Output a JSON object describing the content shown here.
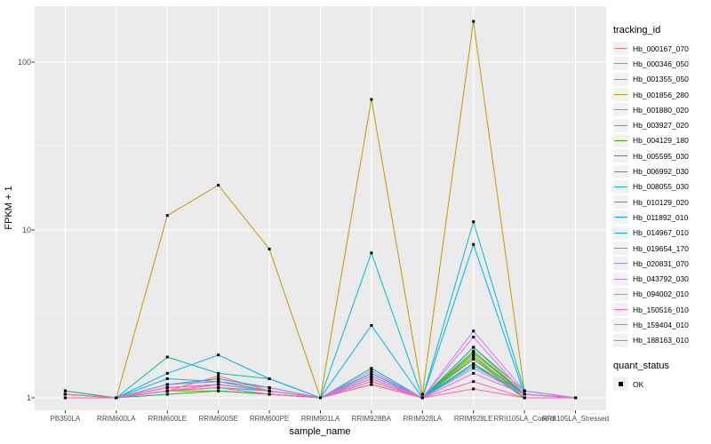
{
  "chart_data": {
    "type": "line",
    "title": "",
    "xlabel": "sample_name",
    "ylabel": "FPKM + 1",
    "y_scale": "log10",
    "y_ticks": [
      1,
      10,
      100
    ],
    "y_tick_labels": [
      "1",
      "10",
      "100"
    ],
    "y_minor_ticks": [
      3.162,
      31.62
    ],
    "ylim": [
      0.84,
      215
    ],
    "grid": true,
    "legend_position": "right",
    "legend_title": "tracking_id",
    "quant_legend": {
      "title": "quant_status",
      "items": [
        "OK"
      ]
    },
    "marker": "black-square",
    "categories": [
      "PB350LA",
      "RRIM600LA",
      "RRIM600LE",
      "RRIM600SE",
      "RRIM600PE",
      "RRIM901LA",
      "RRIM928BA",
      "RRIM928LA",
      "RRIM928LE",
      "RRII105LA_Control",
      "RRII105LA_Stressed"
    ],
    "series": [
      {
        "name": "Hb_000167_070",
        "color": "#F8766D",
        "values": [
          1.05,
          1.0,
          1.1,
          1.35,
          1.1,
          1.0,
          1.2,
          1.0,
          1.6,
          1.05,
          1.0
        ]
      },
      {
        "name": "Hb_000346_050",
        "color": "#EA8331",
        "values": [
          1.1,
          1.0,
          1.15,
          1.2,
          1.1,
          1.0,
          1.3,
          1.0,
          2.0,
          1.05,
          1.0
        ]
      },
      {
        "name": "Hb_001355_050",
        "color": "#D89000",
        "values": [
          1.05,
          1.0,
          1.2,
          1.3,
          1.15,
          1.0,
          1.4,
          1.0,
          1.8,
          1.0,
          1.0
        ]
      },
      {
        "name": "Hb_001856_280",
        "color": "#C09B00",
        "values": [
          1.1,
          1.0,
          12.2,
          18.5,
          7.7,
          1.0,
          60.0,
          1.05,
          175.0,
          1.1,
          1.0
        ]
      },
      {
        "name": "Hb_001880_020",
        "color": "#A3A500",
        "values": [
          1.05,
          1.0,
          1.1,
          1.15,
          1.05,
          1.0,
          1.25,
          1.0,
          1.75,
          1.05,
          1.0
        ]
      },
      {
        "name": "Hb_003927_020",
        "color": "#7CAE00",
        "values": [
          1.0,
          1.0,
          1.1,
          1.1,
          1.05,
          1.0,
          1.3,
          1.0,
          1.7,
          1.0,
          1.0
        ]
      },
      {
        "name": "Hb_004129_180",
        "color": "#39B600",
        "values": [
          1.05,
          1.0,
          1.15,
          1.2,
          1.1,
          1.0,
          1.35,
          1.0,
          1.85,
          1.05,
          1.0
        ]
      },
      {
        "name": "Hb_005595_030",
        "color": "#00BB4E",
        "values": [
          1.0,
          1.0,
          1.05,
          1.1,
          1.05,
          1.0,
          1.2,
          1.0,
          1.6,
          1.0,
          1.0
        ]
      },
      {
        "name": "Hb_006992_030",
        "color": "#00BF7D",
        "values": [
          1.05,
          1.0,
          1.2,
          1.25,
          1.1,
          1.0,
          1.4,
          1.0,
          1.9,
          1.05,
          1.0
        ]
      },
      {
        "name": "Hb_008055_030",
        "color": "#00C1A3",
        "values": [
          1.1,
          1.0,
          1.75,
          1.4,
          1.3,
          1.0,
          1.5,
          1.0,
          2.0,
          1.1,
          1.0
        ]
      },
      {
        "name": "Hb_010129_020",
        "color": "#00BFC4",
        "values": [
          1.05,
          1.0,
          1.3,
          1.25,
          1.15,
          1.0,
          7.3,
          1.0,
          11.2,
          1.1,
          1.0
        ]
      },
      {
        "name": "Hb_011892_010",
        "color": "#00BAE0",
        "values": [
          1.0,
          1.0,
          1.1,
          1.15,
          1.1,
          1.0,
          1.3,
          1.0,
          1.7,
          1.05,
          1.0
        ]
      },
      {
        "name": "Hb_014967_010",
        "color": "#00B0F6",
        "values": [
          1.05,
          1.0,
          1.4,
          1.8,
          1.3,
          1.0,
          2.7,
          1.0,
          8.2,
          1.05,
          1.0
        ]
      },
      {
        "name": "Hb_019654_170",
        "color": "#35A2FF",
        "values": [
          1.0,
          1.0,
          1.2,
          1.3,
          1.15,
          1.0,
          1.4,
          1.0,
          1.55,
          1.05,
          1.0
        ]
      },
      {
        "name": "Hb_020831_070",
        "color": "#9590FF",
        "values": [
          1.05,
          1.0,
          1.15,
          1.2,
          1.1,
          1.0,
          1.35,
          1.0,
          1.5,
          1.05,
          1.0
        ]
      },
      {
        "name": "Hb_043792_030",
        "color": "#C77CFF",
        "values": [
          1.05,
          1.0,
          1.2,
          1.25,
          1.15,
          1.0,
          1.45,
          1.0,
          2.5,
          1.1,
          1.0
        ]
      },
      {
        "name": "Hb_094002_010",
        "color": "#E76BF3",
        "values": [
          1.0,
          1.0,
          1.1,
          1.2,
          1.1,
          1.0,
          1.3,
          1.0,
          2.3,
          1.05,
          1.0
        ]
      },
      {
        "name": "Hb_150516_010",
        "color": "#FA62DB",
        "values": [
          1.05,
          1.0,
          1.15,
          1.2,
          1.1,
          1.0,
          1.35,
          1.0,
          1.4,
          1.05,
          1.0
        ]
      },
      {
        "name": "Hb_159404_010",
        "color": "#FF62BC",
        "values": [
          1.0,
          1.0,
          1.1,
          1.15,
          1.05,
          1.0,
          1.25,
          1.0,
          1.25,
          1.0,
          1.0
        ]
      },
      {
        "name": "Hb_188163_010",
        "color": "#FF6A98",
        "values": [
          1.05,
          1.0,
          1.1,
          1.2,
          1.1,
          1.0,
          1.2,
          1.0,
          1.13,
          1.0,
          1.0
        ]
      }
    ]
  },
  "style": {
    "panel_bg": "#EBEBEB",
    "grid_major": "#FFFFFF",
    "grid_minor": "#F5F5F5",
    "tick_label_color": "#4d4d4d",
    "marker_color": "#000000",
    "legend_key_bg": "#F2F2F2"
  }
}
